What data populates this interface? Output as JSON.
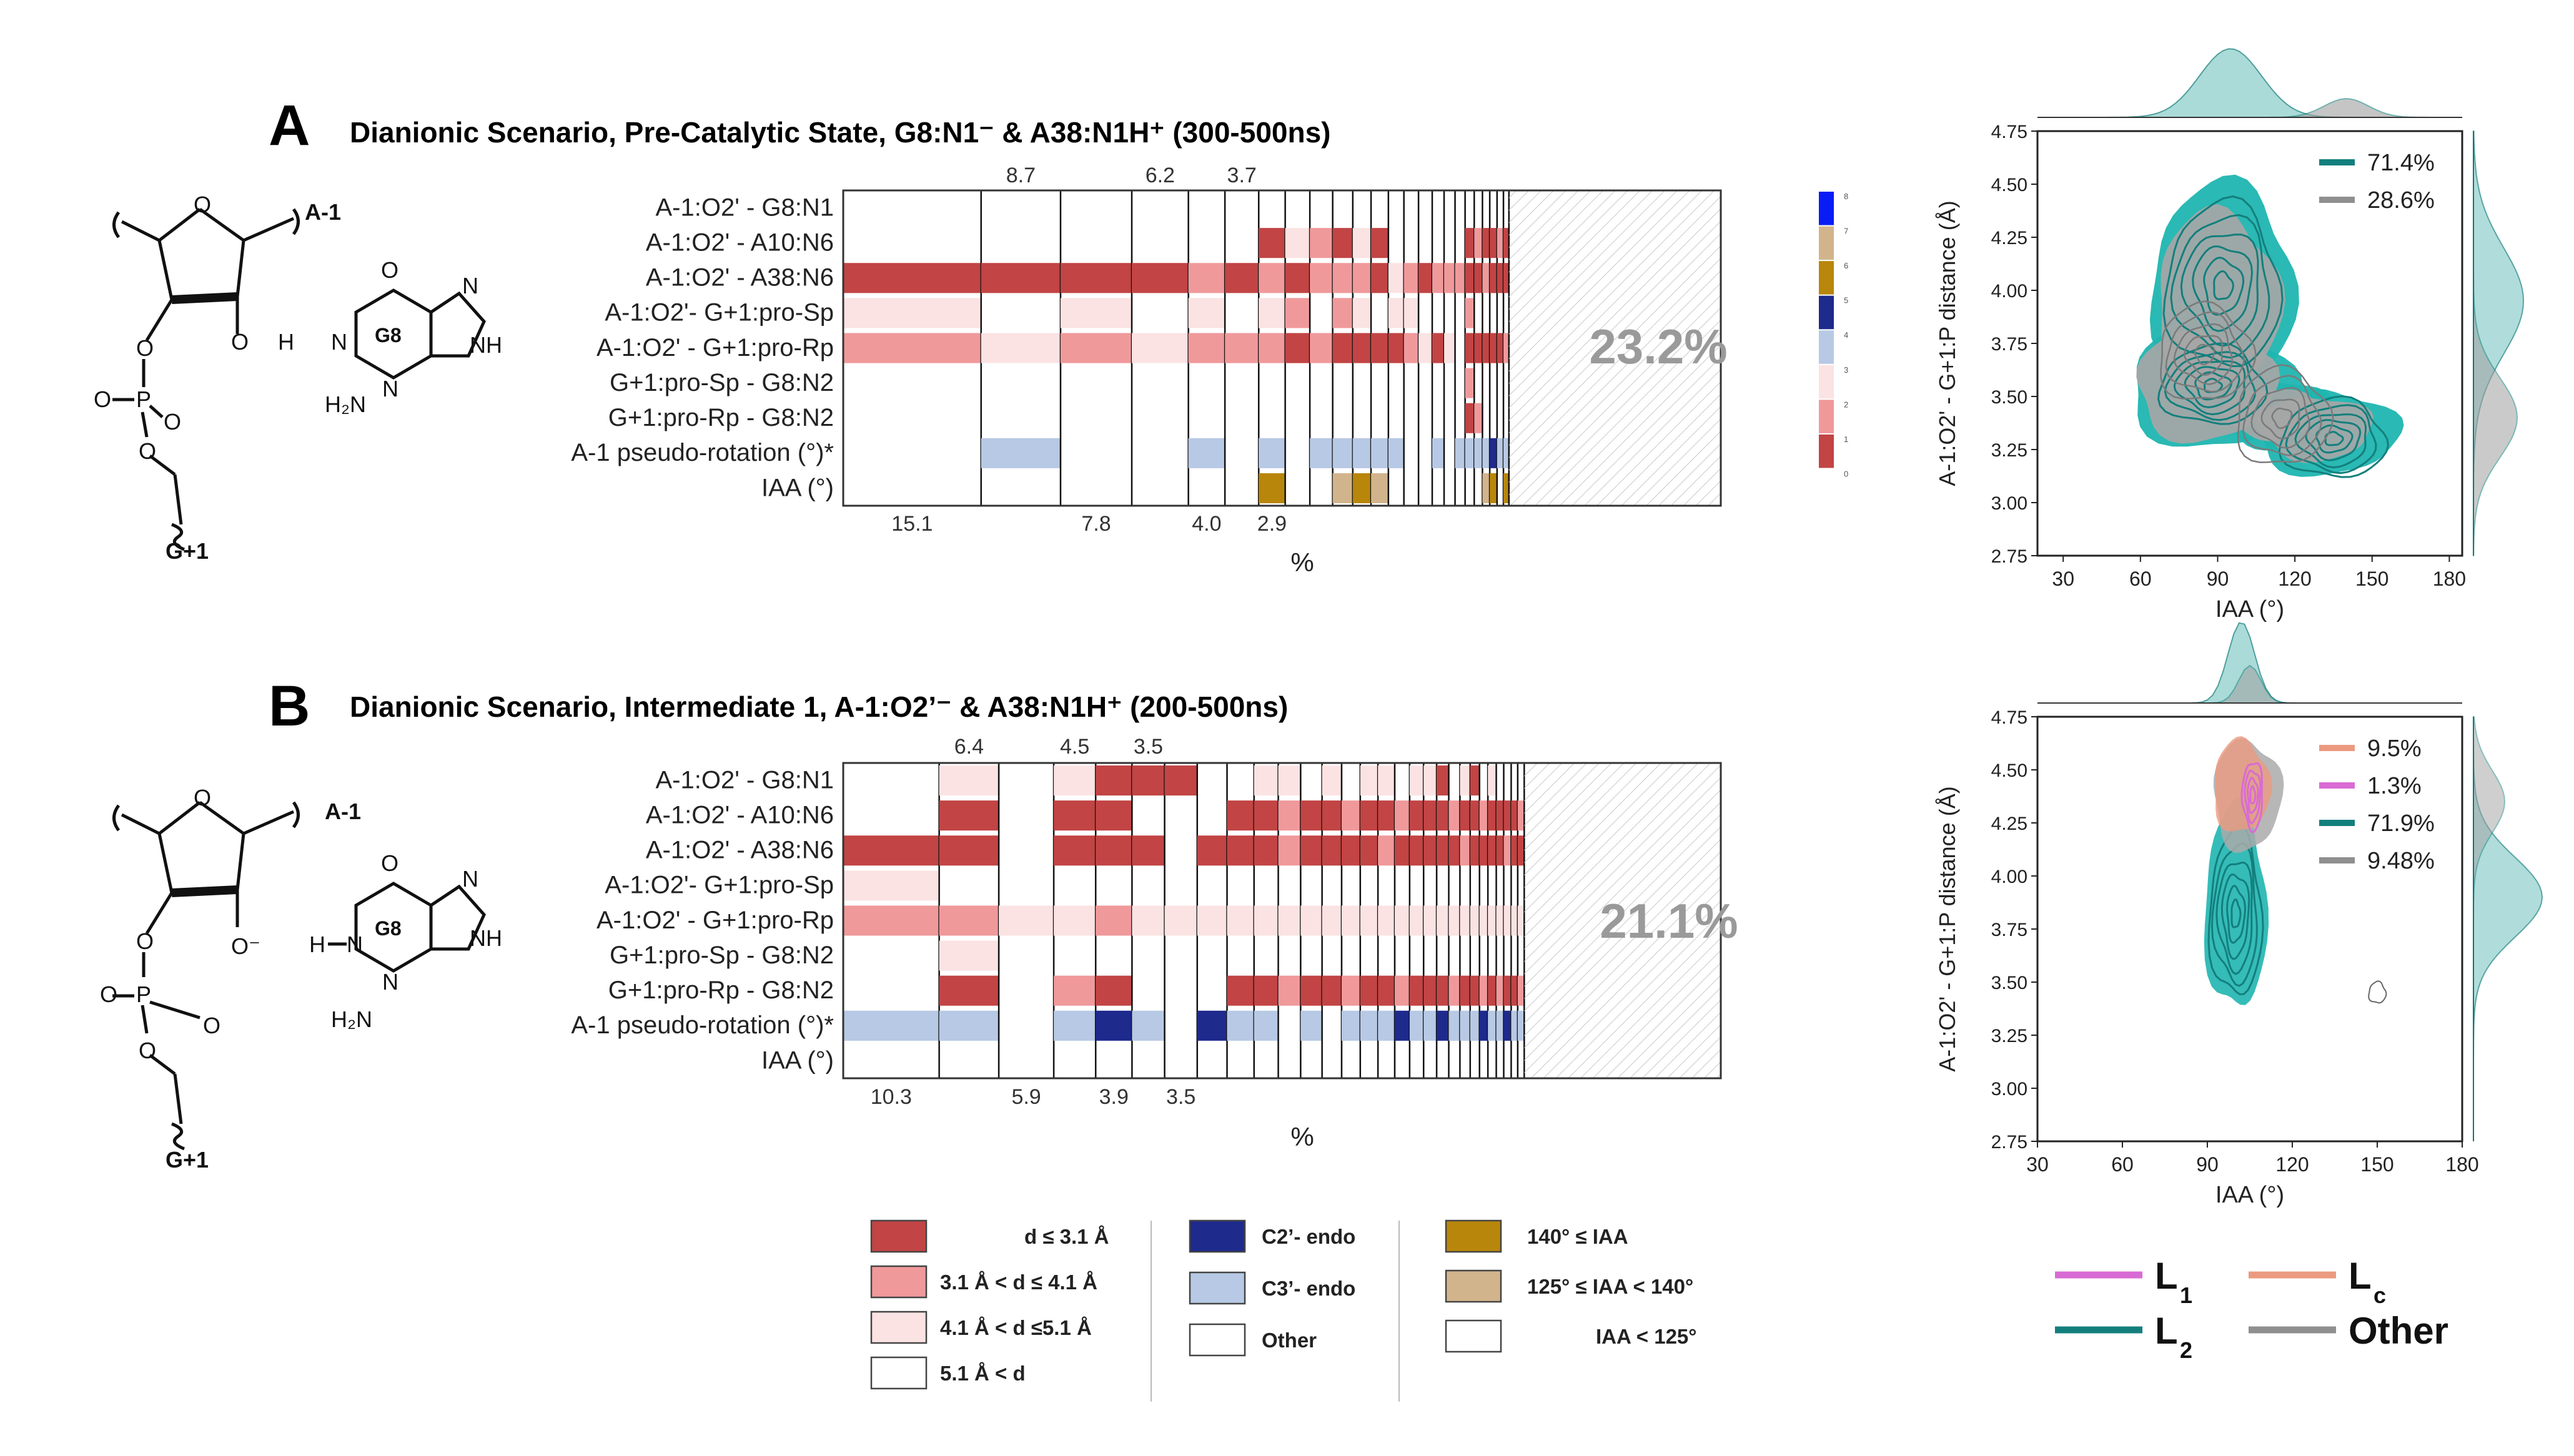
{
  "panels": [
    {
      "letter": "A",
      "title": "Dianionic Scenario, Pre-Catalytic State, G8:N1⁻ & A38:N1H⁺ (300-500ns)",
      "row_labels": [
        "A-1:O2' - G8:N1",
        "A-1:O2' - A10:N6",
        "A-1:O2' - A38:N6",
        "A-1:O2'- G+1:pro-Sp",
        "A-1:O2' - G+1:pro-Rp",
        "G+1:pro-Sp - G8:N2",
        "G+1:pro-Rp - G8:N2",
        "A-1 pseudo-rotation (°)*",
        "IAA (°)"
      ],
      "top_percent_labels": [
        "8.7",
        "6.2",
        "3.7"
      ],
      "bottom_percent_labels": [
        "15.1",
        "7.8",
        "4.0",
        "2.9"
      ],
      "other_percent": "23.2%",
      "xlabel": "%",
      "colorbar_ticks": [
        "8",
        "7",
        "6",
        "5",
        "4",
        "3",
        "2",
        "1",
        "0"
      ],
      "molecule": {
        "residue_top": "A-1",
        "residue_bottom": "G+1",
        "base": "G8",
        "oh": "H"
      }
    },
    {
      "letter": "B",
      "title": "Dianionic Scenario, Intermediate 1, A-1:O2’⁻ & A38:N1H⁺ (200-500ns)",
      "row_labels": [
        "A-1:O2' - G8:N1",
        "A-1:O2' - A10:N6",
        "A-1:O2' - A38:N6",
        "A-1:O2'- G+1:pro-Sp",
        "A-1:O2' - G+1:pro-Rp",
        "G+1:pro-Sp - G8:N2",
        "G+1:pro-Rp - G8:N2",
        "A-1 pseudo-rotation (°)*",
        "IAA (°)"
      ],
      "top_percent_labels": [
        "6.4",
        "4.5",
        "3.5"
      ],
      "bottom_percent_labels": [
        "10.3",
        "5.9",
        "3.9",
        "3.5"
      ],
      "other_percent": "21.1%",
      "xlabel": "%",
      "molecule": {
        "residue_top": "A-1",
        "residue_bottom": "G+1",
        "base": "G8",
        "oh": "H"
      }
    }
  ],
  "legend": {
    "distance": [
      "d ≤ 3.1 Å",
      "3.1 Å < d ≤ 4.1 Å",
      "4.1 Å < d ≤5.1 Å",
      "5.1 Å < d"
    ],
    "pucker": [
      "C2’- endo",
      "C3’- endo",
      "Other"
    ],
    "iaa": [
      "140° ≤ IAA",
      "125° ≤ IAA < 140°",
      "IAA < 125°"
    ]
  },
  "line_legend": [
    {
      "label": "L",
      "sub": "1",
      "color": "#d96bd4"
    },
    {
      "label": "L",
      "sub": "c",
      "color": "#eb9a80"
    },
    {
      "label": "L",
      "sub": "2",
      "color": "#137f7d"
    },
    {
      "label": "Other",
      "sub": "",
      "color": "#8f8f8f"
    }
  ],
  "colors": {
    "d1": "#c24444",
    "d2": "#f0999b",
    "d3": "#fbe3e3",
    "c2endo": "#1e2a8c",
    "c3endo": "#b7c9e4",
    "iaa1": "#b8860b",
    "iaa2": "#d2b48c",
    "teal": "#1fb5b0",
    "tealDark": "#137f7d",
    "grey": "#9a9a9a",
    "peach": "#eb9a80",
    "pink": "#d96bd4"
  },
  "chart_data": [
    {
      "type": "heatmap",
      "title": "Dianionic Scenario, Pre-Catalytic State, G8:N1⁻ & A38:N1H⁺ (300-500ns)",
      "xlabel": "%",
      "rows": [
        "A-1:O2' - G8:N1",
        "A-1:O2' - A10:N6",
        "A-1:O2' - A38:N6",
        "A-1:O2'- G+1:pro-Sp",
        "A-1:O2' - G+1:pro-Rp",
        "G+1:pro-Sp - G8:N2",
        "G+1:pro-Rp - G8:N2",
        "A-1 pseudo-rotation (°)*",
        "IAA (°)"
      ],
      "column_widths": [
        15.1,
        8.7,
        7.8,
        6.2,
        4.0,
        3.7,
        2.9,
        2.7,
        2.5,
        2.2,
        2.0,
        1.9,
        1.7,
        1.6,
        1.5,
        1.3,
        1.2,
        1.1,
        1.0,
        0.9,
        0.8,
        0.8,
        0.7,
        0.6,
        23.2
      ],
      "cells": [
        [
          0,
          0,
          0,
          0,
          0,
          0,
          0,
          0,
          0,
          0,
          0,
          0,
          0,
          0,
          0,
          0,
          0,
          0,
          0,
          0,
          0,
          0,
          0,
          0,
          -1
        ],
        [
          0,
          0,
          0,
          0,
          0,
          0,
          1,
          3,
          2,
          1,
          3,
          1,
          0,
          0,
          0,
          0,
          0,
          0,
          1,
          2,
          1,
          1,
          2,
          1,
          -1
        ],
        [
          1,
          1,
          1,
          1,
          2,
          1,
          2,
          1,
          2,
          2,
          2,
          1,
          3,
          2,
          1,
          2,
          2,
          2,
          1,
          1,
          2,
          1,
          1,
          1,
          -1
        ],
        [
          3,
          0,
          3,
          0,
          3,
          0,
          3,
          2,
          0,
          2,
          3,
          0,
          3,
          3,
          0,
          0,
          0,
          0,
          2,
          0,
          0,
          0,
          0,
          0,
          -1
        ],
        [
          2,
          3,
          2,
          3,
          2,
          2,
          2,
          1,
          2,
          1,
          1,
          1,
          1,
          2,
          3,
          1,
          3,
          0,
          1,
          1,
          1,
          1,
          1,
          2,
          -1
        ],
        [
          0,
          0,
          0,
          0,
          0,
          0,
          0,
          0,
          0,
          0,
          0,
          0,
          0,
          0,
          0,
          0,
          0,
          0,
          2,
          0,
          0,
          0,
          0,
          0,
          -1
        ],
        [
          0,
          0,
          0,
          0,
          0,
          0,
          0,
          0,
          0,
          0,
          0,
          0,
          0,
          0,
          0,
          0,
          0,
          0,
          1,
          2,
          0,
          0,
          0,
          0,
          -1
        ],
        [
          0,
          5,
          0,
          0,
          5,
          0,
          5,
          0,
          5,
          5,
          5,
          5,
          5,
          0,
          0,
          5,
          0,
          5,
          5,
          5,
          5,
          4,
          5,
          5,
          -1
        ],
        [
          0,
          0,
          0,
          0,
          0,
          0,
          6,
          0,
          0,
          7,
          6,
          7,
          0,
          0,
          0,
          0,
          0,
          0,
          0,
          0,
          7,
          6,
          0,
          6,
          -1
        ]
      ],
      "cell_codes": {
        "0": "none",
        "1": "d ≤ 3.1 Å",
        "2": "3.1 Å < d ≤ 4.1 Å",
        "3": "4.1 Å < d ≤5.1 Å",
        "4": "C2’- endo",
        "5": "C3’- endo",
        "6": "140° ≤ IAA",
        "7": "125° ≤ IAA < 140°",
        "-1": "other"
      }
    },
    {
      "type": "heatmap",
      "title": "Dianionic Scenario, Intermediate 1, A-1:O2’⁻ & A38:N1H⁺ (200-500ns)",
      "xlabel": "%",
      "rows": [
        "A-1:O2' - G8:N1",
        "A-1:O2' - A10:N6",
        "A-1:O2' - A38:N6",
        "A-1:O2'- G+1:pro-Sp",
        "A-1:O2' - G+1:pro-Rp",
        "G+1:pro-Sp - G8:N2",
        "G+1:pro-Rp - G8:N2",
        "A-1 pseudo-rotation (°)*",
        "IAA (°)"
      ],
      "column_widths": [
        10.3,
        6.4,
        5.9,
        4.5,
        3.9,
        3.5,
        3.5,
        3.2,
        2.9,
        2.6,
        2.4,
        2.3,
        2.1,
        2.0,
        1.9,
        1.8,
        1.6,
        1.5,
        1.4,
        1.3,
        1.2,
        1.1,
        1.0,
        0.9,
        0.9,
        0.8,
        0.8,
        0.7,
        0.7,
        21.1
      ],
      "cells": [
        [
          0,
          3,
          0,
          3,
          1,
          1,
          1,
          0,
          0,
          3,
          3,
          0,
          3,
          0,
          3,
          3,
          0,
          3,
          3,
          1,
          0,
          3,
          1,
          0,
          3,
          0,
          0,
          0,
          0,
          -1
        ],
        [
          0,
          1,
          0,
          1,
          1,
          0,
          0,
          0,
          1,
          1,
          2,
          1,
          1,
          2,
          1,
          1,
          2,
          1,
          1,
          1,
          2,
          1,
          1,
          2,
          1,
          1,
          1,
          1,
          2,
          -1
        ],
        [
          1,
          1,
          0,
          1,
          1,
          1,
          0,
          1,
          1,
          1,
          2,
          1,
          1,
          1,
          1,
          2,
          1,
          1,
          1,
          1,
          1,
          2,
          1,
          1,
          1,
          1,
          2,
          1,
          1,
          -1
        ],
        [
          3,
          0,
          0,
          0,
          0,
          0,
          0,
          0,
          0,
          0,
          0,
          0,
          0,
          0,
          0,
          0,
          0,
          0,
          0,
          0,
          0,
          0,
          0,
          0,
          0,
          0,
          0,
          0,
          0,
          -1
        ],
        [
          2,
          2,
          3,
          3,
          2,
          3,
          3,
          3,
          3,
          3,
          3,
          3,
          3,
          3,
          3,
          3,
          3,
          3,
          3,
          3,
          3,
          3,
          3,
          3,
          3,
          3,
          3,
          3,
          3,
          -1
        ],
        [
          0,
          3,
          0,
          0,
          0,
          0,
          0,
          0,
          0,
          0,
          0,
          0,
          0,
          0,
          0,
          0,
          0,
          0,
          0,
          0,
          0,
          0,
          0,
          0,
          0,
          0,
          0,
          0,
          0,
          -1
        ],
        [
          0,
          1,
          0,
          2,
          1,
          0,
          0,
          0,
          1,
          1,
          2,
          1,
          1,
          2,
          1,
          1,
          2,
          1,
          1,
          1,
          2,
          1,
          1,
          2,
          1,
          2,
          1,
          1,
          2,
          -1
        ],
        [
          5,
          5,
          0,
          5,
          4,
          5,
          0,
          4,
          5,
          5,
          0,
          5,
          0,
          5,
          5,
          5,
          4,
          5,
          5,
          4,
          5,
          5,
          5,
          4,
          5,
          5,
          4,
          5,
          5,
          -1
        ],
        [
          0,
          0,
          0,
          0,
          0,
          0,
          0,
          0,
          0,
          0,
          0,
          0,
          0,
          0,
          0,
          0,
          0,
          0,
          0,
          0,
          0,
          0,
          0,
          0,
          0,
          0,
          0,
          0,
          0,
          -1
        ]
      ]
    },
    {
      "type": "scatter",
      "subtype": "kde-contour",
      "xlabel": "IAA (°)",
      "ylabel": "A-1:O2' - G+1:P distance (Å)",
      "xlim": [
        20,
        185
      ],
      "ylim": [
        2.75,
        4.75
      ],
      "x_ticks": [
        30,
        60,
        90,
        120,
        150,
        180
      ],
      "y_ticks": [
        2.75,
        3.0,
        3.25,
        3.5,
        3.75,
        4.0,
        4.25,
        4.5,
        4.75
      ],
      "series": [
        {
          "name": "71.4%",
          "color": "#137f7d",
          "fill": "#1fb5b0",
          "clusters": [
            {
              "x": 92,
              "y": 4.02
            },
            {
              "x": 88,
              "y": 3.55
            },
            {
              "x": 135,
              "y": 3.3
            }
          ]
        },
        {
          "name": "28.6%",
          "color": "#8f8f8f",
          "fill": "#a5a5a5",
          "clusters": [
            {
              "x": 85,
              "y": 3.7
            },
            {
              "x": 115,
              "y": 3.4
            }
          ]
        }
      ]
    },
    {
      "type": "scatter",
      "subtype": "kde-contour",
      "xlabel": "IAA (°)",
      "ylabel": "A-1:O2' - G+1:P distance (Å)",
      "xlim": [
        30,
        180
      ],
      "ylim": [
        2.75,
        4.75
      ],
      "x_ticks": [
        30,
        60,
        90,
        120,
        150,
        180
      ],
      "y_ticks": [
        2.75,
        3.0,
        3.25,
        3.5,
        3.75,
        4.0,
        4.25,
        4.5,
        4.75
      ],
      "series": [
        {
          "name": "9.5%",
          "color": "#eb9a80",
          "clusters": [
            {
              "x": 103,
              "y": 4.42
            }
          ]
        },
        {
          "name": "1.3%",
          "color": "#d96bd4",
          "clusters": [
            {
              "x": 106,
              "y": 4.38
            }
          ]
        },
        {
          "name": "71.9%",
          "color": "#137f7d",
          "clusters": [
            {
              "x": 100,
              "y": 3.8
            }
          ]
        },
        {
          "name": "9.48%",
          "color": "#8f8f8f",
          "clusters": [
            {
              "x": 105,
              "y": 4.3
            }
          ]
        }
      ]
    }
  ]
}
